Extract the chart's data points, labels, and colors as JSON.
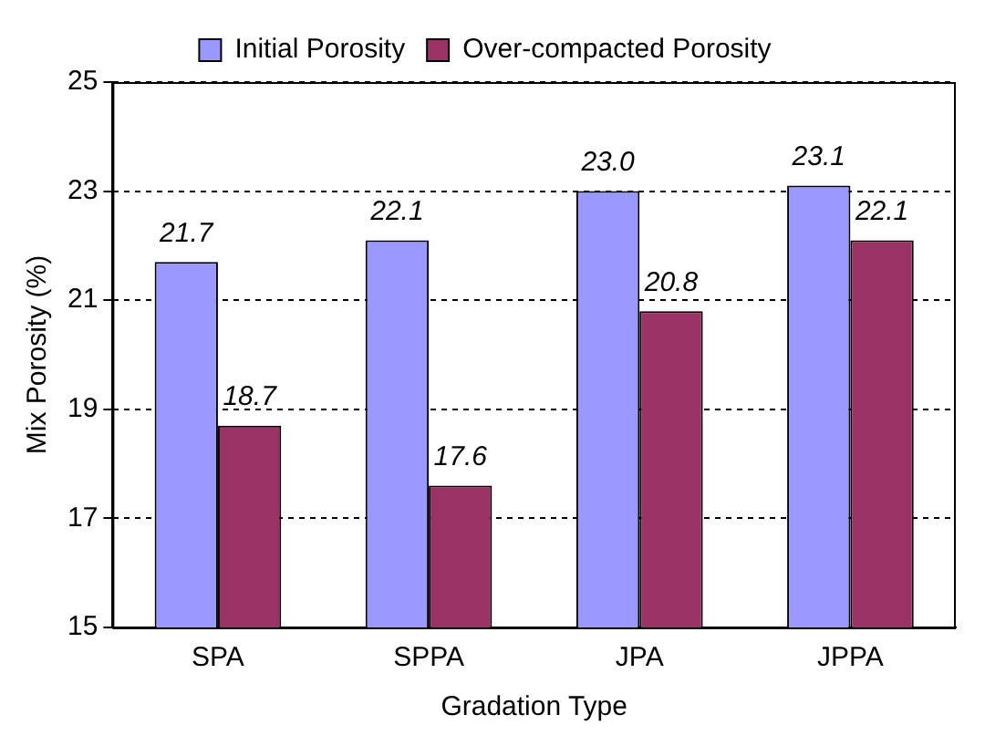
{
  "chart_data": {
    "type": "bar",
    "xlabel": "Gradation Type",
    "ylabel": "Mix Porosity (%)",
    "categories": [
      "SPA",
      "SPPA",
      "JPA",
      "JPPA"
    ],
    "series": [
      {
        "name": "Initial Porosity",
        "color": "#9999ff",
        "values": [
          21.7,
          22.1,
          23.0,
          23.1
        ],
        "value_labels": [
          "21.7",
          "22.1",
          "23.0",
          "23.1"
        ]
      },
      {
        "name": "Over-compacted Porosity",
        "color": "#993366",
        "values": [
          18.7,
          17.6,
          20.8,
          22.1
        ],
        "value_labels": [
          "18.7",
          "17.6",
          "20.8",
          "22.1"
        ]
      }
    ],
    "ylim": [
      15,
      25
    ],
    "yticks": [
      15,
      17,
      19,
      21,
      23,
      25
    ],
    "grid": "y",
    "legend": "top"
  }
}
